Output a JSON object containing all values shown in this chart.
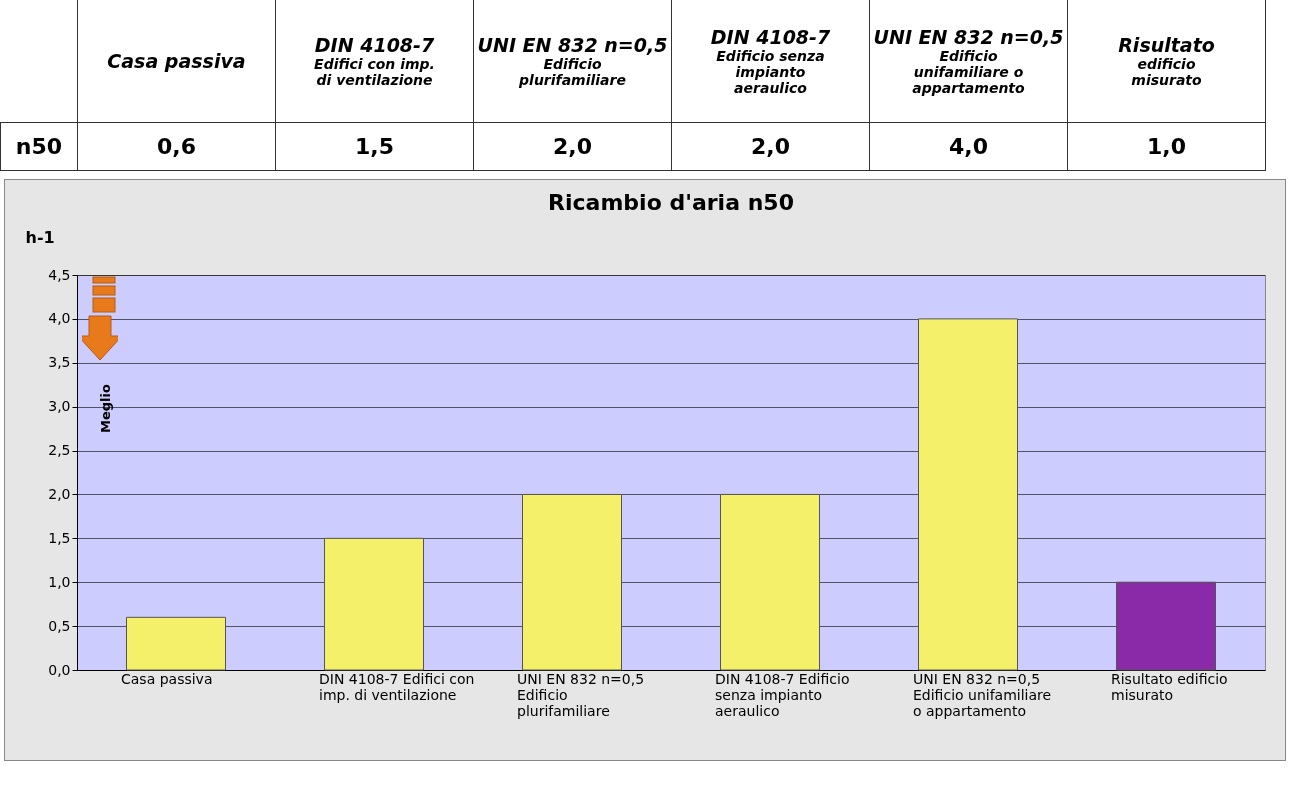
{
  "chart_data": {
    "type": "bar",
    "title": "Ricambio d'aria n50",
    "ylabel": "h-1",
    "categories": [
      "Casa passiva",
      "DIN 4108-7 Edifici con imp. di ventilazione",
      "UNI EN 832 n=0,5 Edificio plurifamiliare",
      "DIN 4108-7 Edificio senza impianto aeraulico",
      "UNI EN 832 n=0,5 Edificio unifamiliare o appartamento",
      "Risultato edificio misurato"
    ],
    "values": [
      0.6,
      1.5,
      2.0,
      2.0,
      4.0,
      1.0
    ],
    "colors": [
      "#f5f06a",
      "#f5f06a",
      "#f5f06a",
      "#f5f06a",
      "#f5f06a",
      "#8a2aa8"
    ],
    "value_labels": [
      "0,6",
      "1,5",
      "2,0",
      "2,0",
      "4,0",
      "1,0"
    ],
    "ylim": [
      0,
      4.5
    ],
    "yticks": [
      {
        "value": 0,
        "label": "0,0"
      },
      {
        "value": 0.5,
        "label": "0,5"
      },
      {
        "value": 1,
        "label": "1,0"
      },
      {
        "value": 1.5,
        "label": "1,5"
      },
      {
        "value": 2,
        "label": "2,0"
      },
      {
        "value": 2.5,
        "label": "2,5"
      },
      {
        "value": 3,
        "label": "3,0"
      },
      {
        "value": 3.5,
        "label": "3,5"
      },
      {
        "value": 4,
        "label": "4,0"
      },
      {
        "value": 4.5,
        "label": "4,5"
      }
    ],
    "grid": "y",
    "legend": false,
    "annotations": [
      "n50",
      "Meglio"
    ]
  }
}
